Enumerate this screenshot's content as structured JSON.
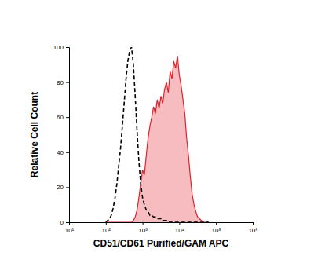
{
  "chart_data": {
    "type": "line",
    "x_label": "CD51/CD61 Purified/GAM APC",
    "y_label": "Relative Cell Count",
    "log": "x",
    "xlim": [
      10,
      1000000
    ],
    "xticks": [
      {
        "value": 10,
        "label": "10¹"
      },
      {
        "value": 100,
        "label": "10²"
      },
      {
        "value": 1000,
        "label": "10³"
      },
      {
        "value": 10000,
        "label": "10⁴"
      },
      {
        "value": 100000,
        "label": "10⁵"
      },
      {
        "value": 1000000,
        "label": "10⁶"
      }
    ],
    "ylim": [
      0,
      100
    ],
    "yticks": [
      0,
      20,
      40,
      60,
      80,
      100
    ],
    "x": [
      100,
      112,
      126,
      141,
      158,
      178,
      200,
      224,
      251,
      282,
      316,
      355,
      398,
      447,
      501,
      562,
      631,
      708,
      794,
      891,
      1000,
      1122,
      1259,
      1413,
      1585,
      1778,
      1995,
      2239,
      2512,
      2818,
      3162,
      3548,
      3981,
      4467,
      5012,
      5623,
      6310,
      7079,
      7943,
      8913,
      10000,
      11220,
      12589,
      14125,
      15849,
      17783,
      19953,
      22387,
      25119,
      28184,
      31623,
      35481,
      39811,
      44668,
      50119,
      56234,
      63096
    ],
    "series": [
      {
        "type": "area",
        "color": "#e0202a",
        "line_style": "solid",
        "values": [
          0,
          0,
          0,
          0,
          0,
          0,
          0,
          0,
          0,
          0,
          0,
          0,
          0,
          0,
          0,
          1,
          3,
          7,
          14,
          22,
          30,
          27,
          38,
          48,
          55,
          60,
          66,
          62,
          70,
          65,
          72,
          68,
          76,
          80,
          74,
          86,
          82,
          92,
          88,
          95,
          84,
          78,
          70,
          62,
          48,
          38,
          26,
          16,
          10,
          6,
          3,
          2,
          1,
          0,
          0,
          0,
          0
        ]
      },
      {
        "type": "line",
        "color": "#000000",
        "line_style": "dashed",
        "values": [
          0,
          1,
          2,
          4,
          8,
          14,
          22,
          32,
          42,
          55,
          68,
          82,
          92,
          98,
          100,
          90,
          72,
          52,
          35,
          22,
          14,
          10,
          7,
          6,
          4,
          4,
          3,
          3,
          2,
          2,
          2,
          1,
          1,
          1,
          1,
          0,
          0,
          0,
          0,
          0,
          0,
          0,
          0,
          0,
          0,
          0,
          0,
          0,
          0,
          0,
          0,
          0,
          0,
          0,
          0,
          0,
          0
        ]
      }
    ]
  }
}
